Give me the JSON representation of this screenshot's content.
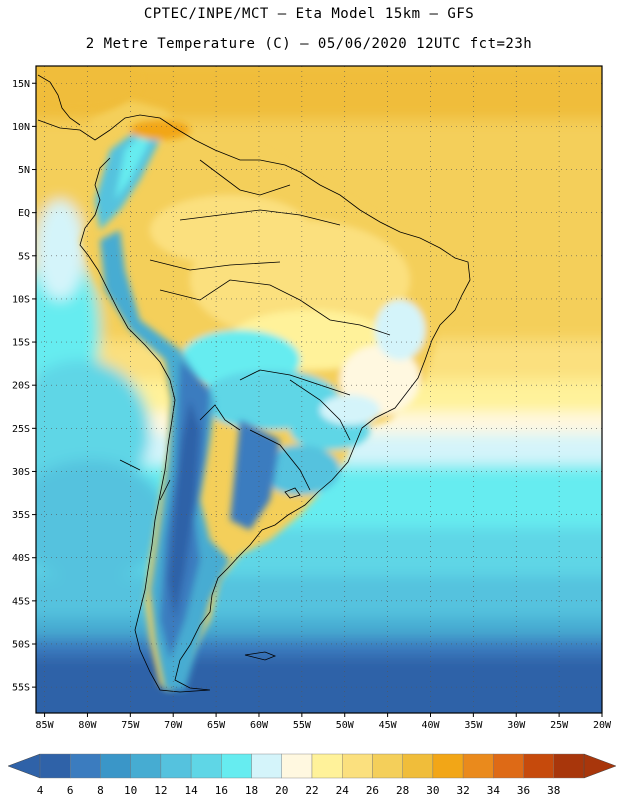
{
  "header": {
    "line1": "CPTEC/INPE/MCT –  Eta Model 15km – GFS",
    "line2": "2 Metre Temperature (C) – 05/06/2020 12UTC fct=23h"
  },
  "map": {
    "lat_range": [
      -58,
      17
    ],
    "lon_range": [
      -86,
      -20
    ],
    "lat_ticks": [
      "15N",
      "10N",
      "5N",
      "EQ",
      "5S",
      "10S",
      "15S",
      "20S",
      "25S",
      "30S",
      "35S",
      "40S",
      "45S",
      "50S",
      "55S"
    ],
    "lat_tick_values": [
      15,
      10,
      5,
      0,
      -5,
      -10,
      -15,
      -20,
      -25,
      -30,
      -35,
      -40,
      -45,
      -50,
      -55
    ],
    "lon_ticks": [
      "85W",
      "80W",
      "75W",
      "70W",
      "65W",
      "60W",
      "55W",
      "50W",
      "45W",
      "40W",
      "35W",
      "30W",
      "25W",
      "20W"
    ],
    "lon_tick_values": [
      -85,
      -80,
      -75,
      -70,
      -65,
      -60,
      -55,
      -50,
      -45,
      -40,
      -35,
      -30,
      -25,
      -20
    ],
    "grid": true
  },
  "colorbar": {
    "labels": [
      "4",
      "6",
      "8",
      "10",
      "12",
      "14",
      "16",
      "18",
      "20",
      "22",
      "24",
      "26",
      "28",
      "30",
      "32",
      "34",
      "36",
      "38"
    ],
    "colors": [
      "#2f62a8",
      "#3b7cbf",
      "#3a96c8",
      "#46acd2",
      "#55c2de",
      "#5fd6e6",
      "#66ecf0",
      "#d4f4fa",
      "#fff8e0",
      "#fff29a",
      "#fbe07e",
      "#f4cf5a",
      "#f0bd3a",
      "#f2a617",
      "#ea8a1c",
      "#de6a16",
      "#c64a0c",
      "#a8360b"
    ],
    "left_arrow_color": "#2f62a8",
    "right_arrow_color": "#a8360b"
  }
}
